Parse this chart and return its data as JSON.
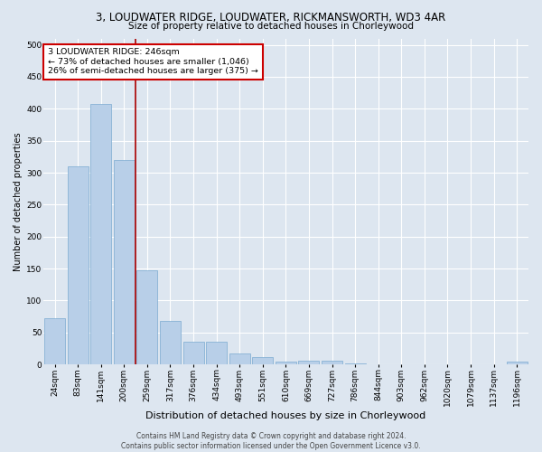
{
  "title": "3, LOUDWATER RIDGE, LOUDWATER, RICKMANSWORTH, WD3 4AR",
  "subtitle": "Size of property relative to detached houses in Chorleywood",
  "xlabel": "Distribution of detached houses by size in Chorleywood",
  "ylabel": "Number of detached properties",
  "categories": [
    "24sqm",
    "83sqm",
    "141sqm",
    "200sqm",
    "259sqm",
    "317sqm",
    "376sqm",
    "434sqm",
    "493sqm",
    "551sqm",
    "610sqm",
    "669sqm",
    "727sqm",
    "786sqm",
    "844sqm",
    "903sqm",
    "962sqm",
    "1020sqm",
    "1079sqm",
    "1137sqm",
    "1196sqm"
  ],
  "values": [
    72,
    310,
    408,
    320,
    147,
    68,
    36,
    36,
    17,
    11,
    5,
    6,
    6,
    2,
    0,
    0,
    0,
    0,
    0,
    0,
    4
  ],
  "bar_color": "#b8cfe8",
  "bar_edge_color": "#7aaad0",
  "vline_color": "#aa0000",
  "annotation_text": "3 LOUDWATER RIDGE: 246sqm\n← 73% of detached houses are smaller (1,046)\n26% of semi-detached houses are larger (375) →",
  "annotation_box_color": "#ffffff",
  "annotation_box_edge_color": "#cc0000",
  "background_color": "#dde6f0",
  "grid_color": "#ffffff",
  "footer1": "Contains HM Land Registry data © Crown copyright and database right 2024.",
  "footer2": "Contains public sector information licensed under the Open Government Licence v3.0.",
  "ylim": [
    0,
    510
  ],
  "yticks": [
    0,
    50,
    100,
    150,
    200,
    250,
    300,
    350,
    400,
    450,
    500
  ],
  "title_fontsize": 8.5,
  "subtitle_fontsize": 7.5,
  "xlabel_fontsize": 8,
  "ylabel_fontsize": 7,
  "tick_fontsize": 6.5,
  "footer_fontsize": 5.5
}
